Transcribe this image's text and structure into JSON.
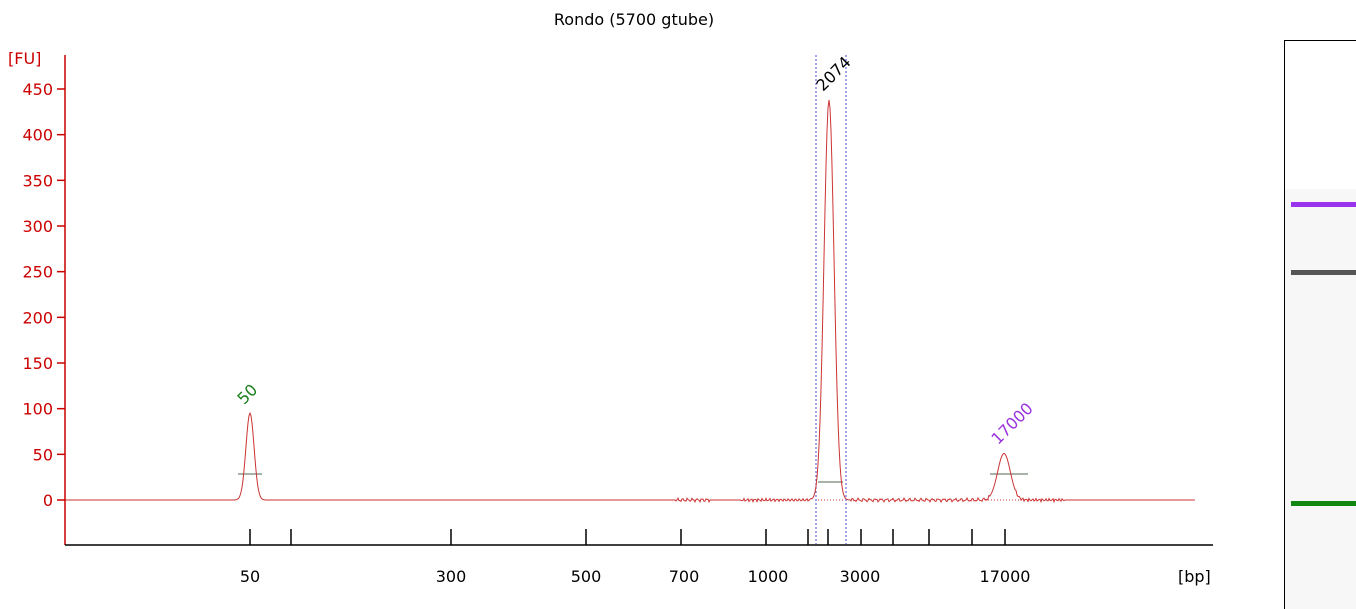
{
  "chart_data": {
    "type": "line",
    "title": "Rondo (5700 gtube)",
    "ylabel": "[FU]",
    "xlabel": "[bp]",
    "ylim": [
      -45,
      470
    ],
    "y_ticks": [
      0,
      50,
      100,
      150,
      200,
      250,
      300,
      350,
      400,
      450
    ],
    "x_tick_labels": [
      "50",
      "300",
      "500",
      "700",
      "1000",
      "3000",
      "17000"
    ],
    "peaks": [
      {
        "label": "50",
        "size_bp": 50,
        "fu": 95,
        "color": "#1a7f1a"
      },
      {
        "label": "2074",
        "size_bp": 2074,
        "fu": 438,
        "color": "#000000"
      },
      {
        "label": "17000",
        "size_bp": 17000,
        "fu": 51,
        "color": "#9933dd"
      }
    ],
    "trace_color": "#cc3333",
    "axis_color": "#cc0000",
    "region_markers": "blue dotted lines bracketing the 2074 bp peak",
    "gel_bands": [
      {
        "name": "17000 marker",
        "color": "#9933ee"
      },
      {
        "name": "2074 sample",
        "color": "#555555"
      },
      {
        "name": "50 marker",
        "color": "#118811"
      }
    ]
  }
}
